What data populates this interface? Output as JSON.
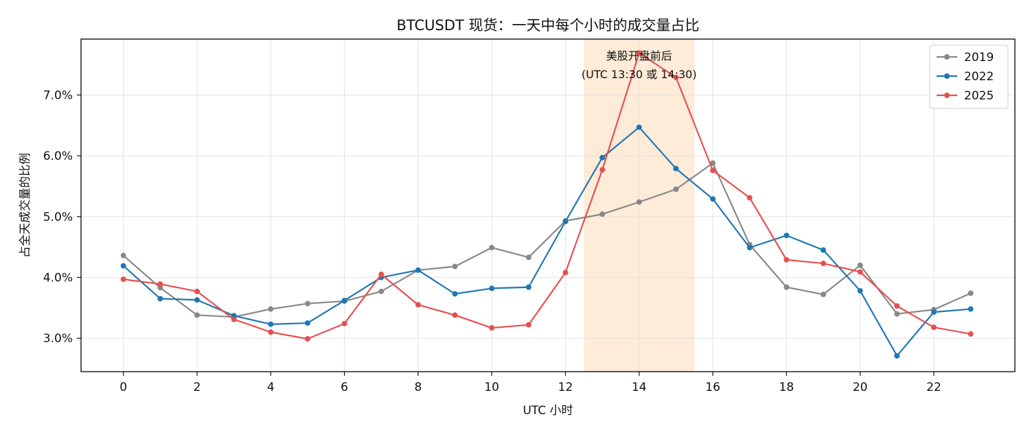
{
  "chart_data": {
    "type": "line",
    "title": "BTCUSDT 现货：一天中每个小时的成交量占比",
    "xlabel": "UTC 小时",
    "ylabel": "占全天成交量的比例",
    "x": [
      0,
      1,
      2,
      3,
      4,
      5,
      6,
      7,
      8,
      9,
      10,
      11,
      12,
      13,
      14,
      15,
      16,
      17,
      18,
      19,
      20,
      21,
      22,
      23
    ],
    "x_ticks": [
      0,
      2,
      4,
      6,
      8,
      10,
      12,
      14,
      16,
      18,
      20,
      22
    ],
    "x_tick_labels": [
      "0",
      "2",
      "4",
      "6",
      "8",
      "10",
      "12",
      "14",
      "16",
      "18",
      "20",
      "22"
    ],
    "xlim": [
      -1.15,
      24.2
    ],
    "ylim": [
      2.45,
      7.92
    ],
    "y_ticks": [
      3.0,
      4.0,
      5.0,
      6.0,
      7.0
    ],
    "y_tick_labels": [
      "3.0%",
      "4.0%",
      "5.0%",
      "6.0%",
      "7.0%"
    ],
    "grid": true,
    "legend_position": "top-right",
    "series": [
      {
        "name": "2019",
        "color": "#888888",
        "values": [
          4.36,
          3.83,
          3.38,
          3.35,
          3.48,
          3.57,
          3.61,
          3.77,
          4.12,
          4.18,
          4.49,
          4.33,
          4.93,
          5.04,
          5.24,
          5.45,
          5.88,
          4.54,
          3.84,
          3.72,
          4.2,
          3.4,
          3.47,
          3.74
        ]
      },
      {
        "name": "2022",
        "color": "#1f77b4",
        "values": [
          4.19,
          3.65,
          3.63,
          3.37,
          3.23,
          3.25,
          3.62,
          4.0,
          4.12,
          3.73,
          3.82,
          3.84,
          4.92,
          5.97,
          6.47,
          5.79,
          5.29,
          4.49,
          4.69,
          4.45,
          3.78,
          2.71,
          3.43,
          3.48
        ]
      },
      {
        "name": "2025",
        "color": "#e5504f",
        "values": [
          3.97,
          3.89,
          3.77,
          3.31,
          3.1,
          2.99,
          3.24,
          4.05,
          3.55,
          3.38,
          3.17,
          3.22,
          4.08,
          5.77,
          7.69,
          7.29,
          5.76,
          5.31,
          4.29,
          4.23,
          4.09,
          3.53,
          3.18,
          3.07
        ]
      }
    ],
    "shaded_region": {
      "x_start": 12.5,
      "x_end": 15.5,
      "color": "#fde3c7"
    },
    "annotation": {
      "lines": [
        "美股开盘前后",
        "(UTC 13:30 或 14:30)"
      ],
      "x": 14.0,
      "y": 7.58
    }
  }
}
